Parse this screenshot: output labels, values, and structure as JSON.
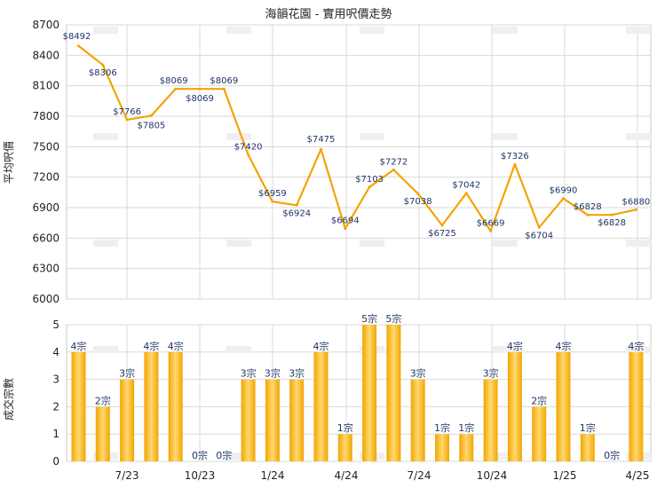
{
  "chart_data": [
    {
      "type": "line",
      "title": "海韻花園 - 實用呎價走勢",
      "ylabel": "平均呎價",
      "ylim": [
        6000,
        8700
      ],
      "yticks": [
        6000,
        6300,
        6600,
        6900,
        7200,
        7500,
        7800,
        8100,
        8400,
        8700
      ],
      "x_tick_labels": [
        "7/23",
        "10/23",
        "1/24",
        "4/24",
        "7/24",
        "10/24",
        "1/25",
        "4/25"
      ],
      "color": "#f5a300",
      "series": [
        {
          "values": [
            8492,
            8306,
            7766,
            7805,
            8069,
            8069,
            8069,
            7420,
            6959,
            6924,
            7475,
            6694,
            7103,
            7272,
            7038,
            6725,
            7042,
            6669,
            7326,
            6704,
            6990,
            6828,
            6828,
            6880
          ],
          "labels": [
            "$8492",
            "$8306",
            "$7766",
            "$7805",
            "$8069",
            "$8069",
            "$8069",
            "$7420",
            "$6959",
            "$6924",
            "$7475",
            "$6694",
            "$7103",
            "$7272",
            "$7038",
            "$6725",
            "$7042",
            "$6669",
            "$7326",
            "$6704",
            "$6990",
            "$6828",
            "$6828",
            "$6880"
          ]
        }
      ]
    },
    {
      "type": "bar",
      "ylabel": "成交宗數",
      "ylim": [
        0,
        5
      ],
      "yticks": [
        0,
        1,
        2,
        3,
        4,
        5
      ],
      "x_tick_labels": [
        "7/23",
        "10/23",
        "1/24",
        "4/24",
        "7/24",
        "10/24",
        "1/25",
        "4/25"
      ],
      "color": "#f5a300",
      "values": [
        4,
        2,
        3,
        4,
        4,
        0,
        0,
        3,
        3,
        3,
        4,
        1,
        5,
        5,
        3,
        1,
        1,
        3,
        4,
        2,
        4,
        1,
        0,
        4
      ],
      "labels": [
        "4宗",
        "2宗",
        "3宗",
        "4宗",
        "4宗",
        "0宗",
        "0宗",
        "3宗",
        "3宗",
        "3宗",
        "4宗",
        "1宗",
        "5宗",
        "5宗",
        "3宗",
        "1宗",
        "1宗",
        "3宗",
        "4宗",
        "2宗",
        "4宗",
        "1宗",
        "0宗",
        "4宗"
      ]
    }
  ]
}
